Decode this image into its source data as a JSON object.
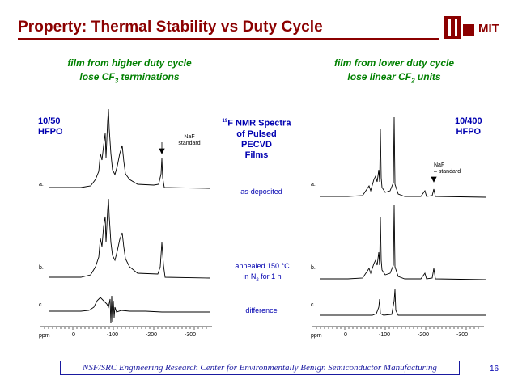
{
  "slide": {
    "title": "Property: Thermal Stability vs Duty Cycle",
    "logo_text": "MIT",
    "page_number": "16",
    "footer": "NSF/SRC Engineering Research Center for Environmentally Benign Semiconductor Manufacturing"
  },
  "captions": {
    "left_line1": "film from higher duty cycle",
    "left_line2_pre": "lose CF",
    "left_line2_sub": "3",
    "left_line2_post": " terminations",
    "right_line1": "film from lower duty cycle",
    "right_line2_pre": "lose linear CF",
    "right_line2_sub": "2",
    "right_line2_post": " units"
  },
  "center": {
    "nmr_sup": "19",
    "nmr_line1": "F NMR Spectra",
    "nmr_line2": "of Pulsed PECVD",
    "nmr_line3": "Films",
    "as_deposited": "as-deposited",
    "annealed_line1": "annealed 150 °C",
    "annealed_line2_pre": "in N",
    "annealed_line2_sub": "2",
    "annealed_line2_post": " for 1 h",
    "difference": "difference"
  },
  "left_panel": {
    "sample_line1": "10/50",
    "sample_line2": "HFPO",
    "naf_line1": "NaF",
    "naf_line2": "standard",
    "trace_labels": [
      "a.",
      "b.",
      "c."
    ],
    "axis_unit": "ppm",
    "ticks": [
      "0",
      "-100",
      "-200",
      "-300"
    ]
  },
  "right_panel": {
    "sample_line1": "10/400",
    "sample_line2": "HFPO",
    "naf_line1": "NaF",
    "naf_line2": "standard",
    "trace_labels": [
      "a.",
      "b.",
      "c."
    ],
    "axis_unit": "ppm",
    "ticks": [
      "0",
      "-100",
      "-200",
      "-300"
    ]
  },
  "colors": {
    "title": "#8b0000",
    "caption": "#008000",
    "label_blue": "#0000b0",
    "trace": "#000000"
  }
}
